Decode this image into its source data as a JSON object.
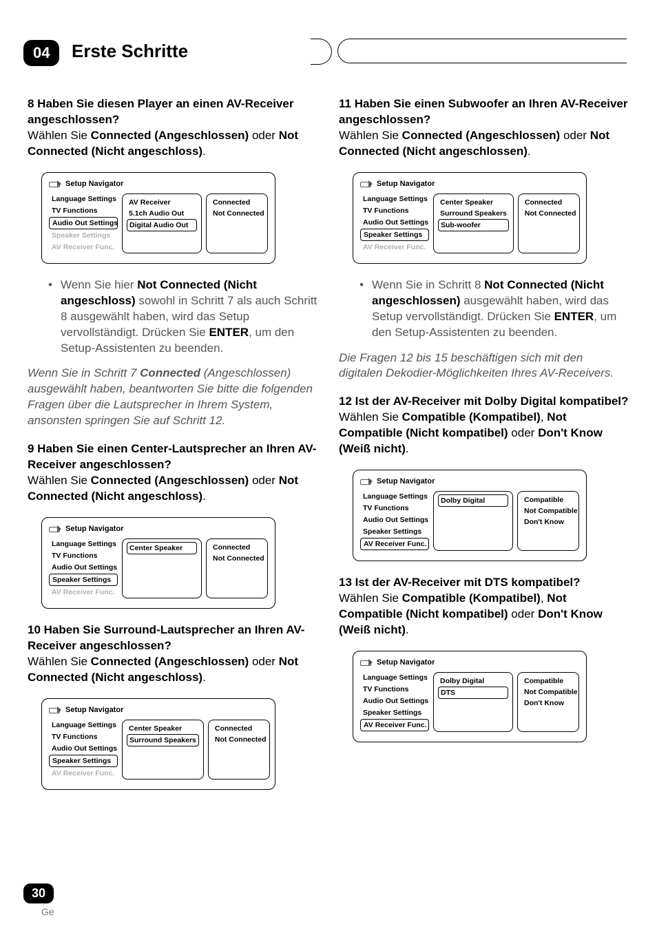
{
  "chapter": {
    "number": "04",
    "title": "Erste Schritte"
  },
  "page": {
    "number": "30",
    "lang": "Ge"
  },
  "colors": {
    "text": "#000000",
    "muted": "#555555",
    "faded": "#b0b0b0",
    "bg": "#ffffff"
  },
  "navCommon": {
    "title": "Setup Navigator",
    "categories": [
      "Language Settings",
      "TV Functions",
      "Audio Out Settings",
      "Speaker Settings",
      "AV Receiver Func."
    ]
  },
  "left": {
    "step8": {
      "q": "8   Haben Sie diesen Player an einen AV-Receiver angeschlossen?",
      "sel1": "Wählen Sie ",
      "b1": "Connected (Angeschlossen)",
      "sel2": " oder ",
      "b2": "Not Connected (Nicht angeschloss)",
      "end": "."
    },
    "nav8": {
      "activeCat": 2,
      "fadedCats": [
        3,
        4
      ],
      "mid": [
        "AV Receiver",
        "5.1ch Audio Out",
        "Digital Audio Out"
      ],
      "midSel": 2,
      "right": [
        "Connected",
        "Not Connected"
      ]
    },
    "bullet8": {
      "t1": "Wenn Sie hier ",
      "b1": "Not Connected (Nicht angeschloss)",
      "t2": " sowohl in Schritt 7 als auch Schritt 8 ausgewählt haben, wird das Setup vervollständigt. Drücken Sie ",
      "b2": "ENTER",
      "t3": ", um den Setup-Assistenten zu beenden."
    },
    "note8": {
      "t1": "Wenn Sie in Schritt 7 ",
      "b1": "Connected",
      "t2": " (Angeschlossen) ausgewählt haben, beantworten Sie bitte die folgenden Fragen über die Lautsprecher in Ihrem System, ansonsten springen Sie auf Schritt 12."
    },
    "step9": {
      "q": "9   Haben Sie einen Center-Lautsprecher an Ihren AV-Receiver angeschlossen?",
      "sel1": "Wählen Sie ",
      "b1": "Connected (Angeschlossen)",
      "sel2": " oder ",
      "b2": "Not Connected (Nicht angeschloss)",
      "end": "."
    },
    "nav9": {
      "activeCat": 3,
      "fadedCats": [
        4
      ],
      "mid": [
        "Center Speaker"
      ],
      "midSel": 0,
      "right": [
        "Connected",
        "Not Connected"
      ]
    },
    "step10": {
      "q": "10  Haben Sie Surround-Lautsprecher an Ihren AV-Receiver angeschlossen?",
      "sel1": "Wählen Sie ",
      "b1": "Connected (Angeschlossen)",
      "sel2": " oder ",
      "b2": "Not Connected (Nicht angeschloss)",
      "end": "."
    },
    "nav10": {
      "activeCat": 3,
      "fadedCats": [
        4
      ],
      "mid": [
        "Center Speaker",
        "Surround Speakers"
      ],
      "midSel": 1,
      "right": [
        "Connected",
        "Not Connected"
      ]
    }
  },
  "right": {
    "step11": {
      "q": "11  Haben Sie einen Subwoofer an Ihren AV-Receiver angeschlossen?",
      "sel1": "Wählen Sie ",
      "b1": "Connected (Angeschlossen)",
      "sel2": " oder ",
      "b2": "Not Connected (Nicht angeschlossen)",
      "end": "."
    },
    "nav11": {
      "activeCat": 3,
      "fadedCats": [
        4
      ],
      "mid": [
        "Center Speaker",
        "Surround Speakers",
        "Sub-woofer"
      ],
      "midSel": 2,
      "right": [
        "Connected",
        "Not Connected"
      ]
    },
    "bullet11": {
      "t1": "Wenn Sie in Schritt 8 ",
      "b1": "Not Connected (Nicht angeschlossen)",
      "t2": " ausgewählt haben, wird das Setup vervollständigt. Drücken Sie ",
      "b2": "ENTER",
      "t3": ", um den Setup-Assistenten zu beenden."
    },
    "note11": "Die Fragen 12 bis 15 beschäftigen sich mit den digitalen Dekodier-Möglichkeiten Ihres AV-Receivers.",
    "step12": {
      "q": "12  Ist der AV-Receiver mit Dolby Digital kompatibel?",
      "sel1": "Wählen Sie ",
      "b1": "Compatible (Kompatibel)",
      "sep1": ", ",
      "b2": "Not Compatible (Nicht kompatibel)",
      "sel2": " oder ",
      "b3": "Don't Know (Weiß nicht)",
      "end": "."
    },
    "nav12": {
      "activeCat": 4,
      "fadedCats": [],
      "mid": [
        "Dolby Digital"
      ],
      "midSel": 0,
      "right": [
        "Compatible",
        "Not Compatible",
        "Don't Know"
      ]
    },
    "step13": {
      "q": "13  Ist der AV-Receiver mit DTS kompatibel?",
      "sel1": "Wählen Sie ",
      "b1": "Compatible (Kompatibel)",
      "sep1": ", ",
      "b2": "Not Compatible (Nicht kompatibel)",
      "sel2": " oder ",
      "b3": "Don't Know (Weiß nicht)",
      "end": "."
    },
    "nav13": {
      "activeCat": 4,
      "fadedCats": [],
      "mid": [
        "Dolby Digital",
        "DTS"
      ],
      "midSel": 1,
      "right": [
        "Compatible",
        "Not Compatible",
        "Don't Know"
      ]
    }
  }
}
